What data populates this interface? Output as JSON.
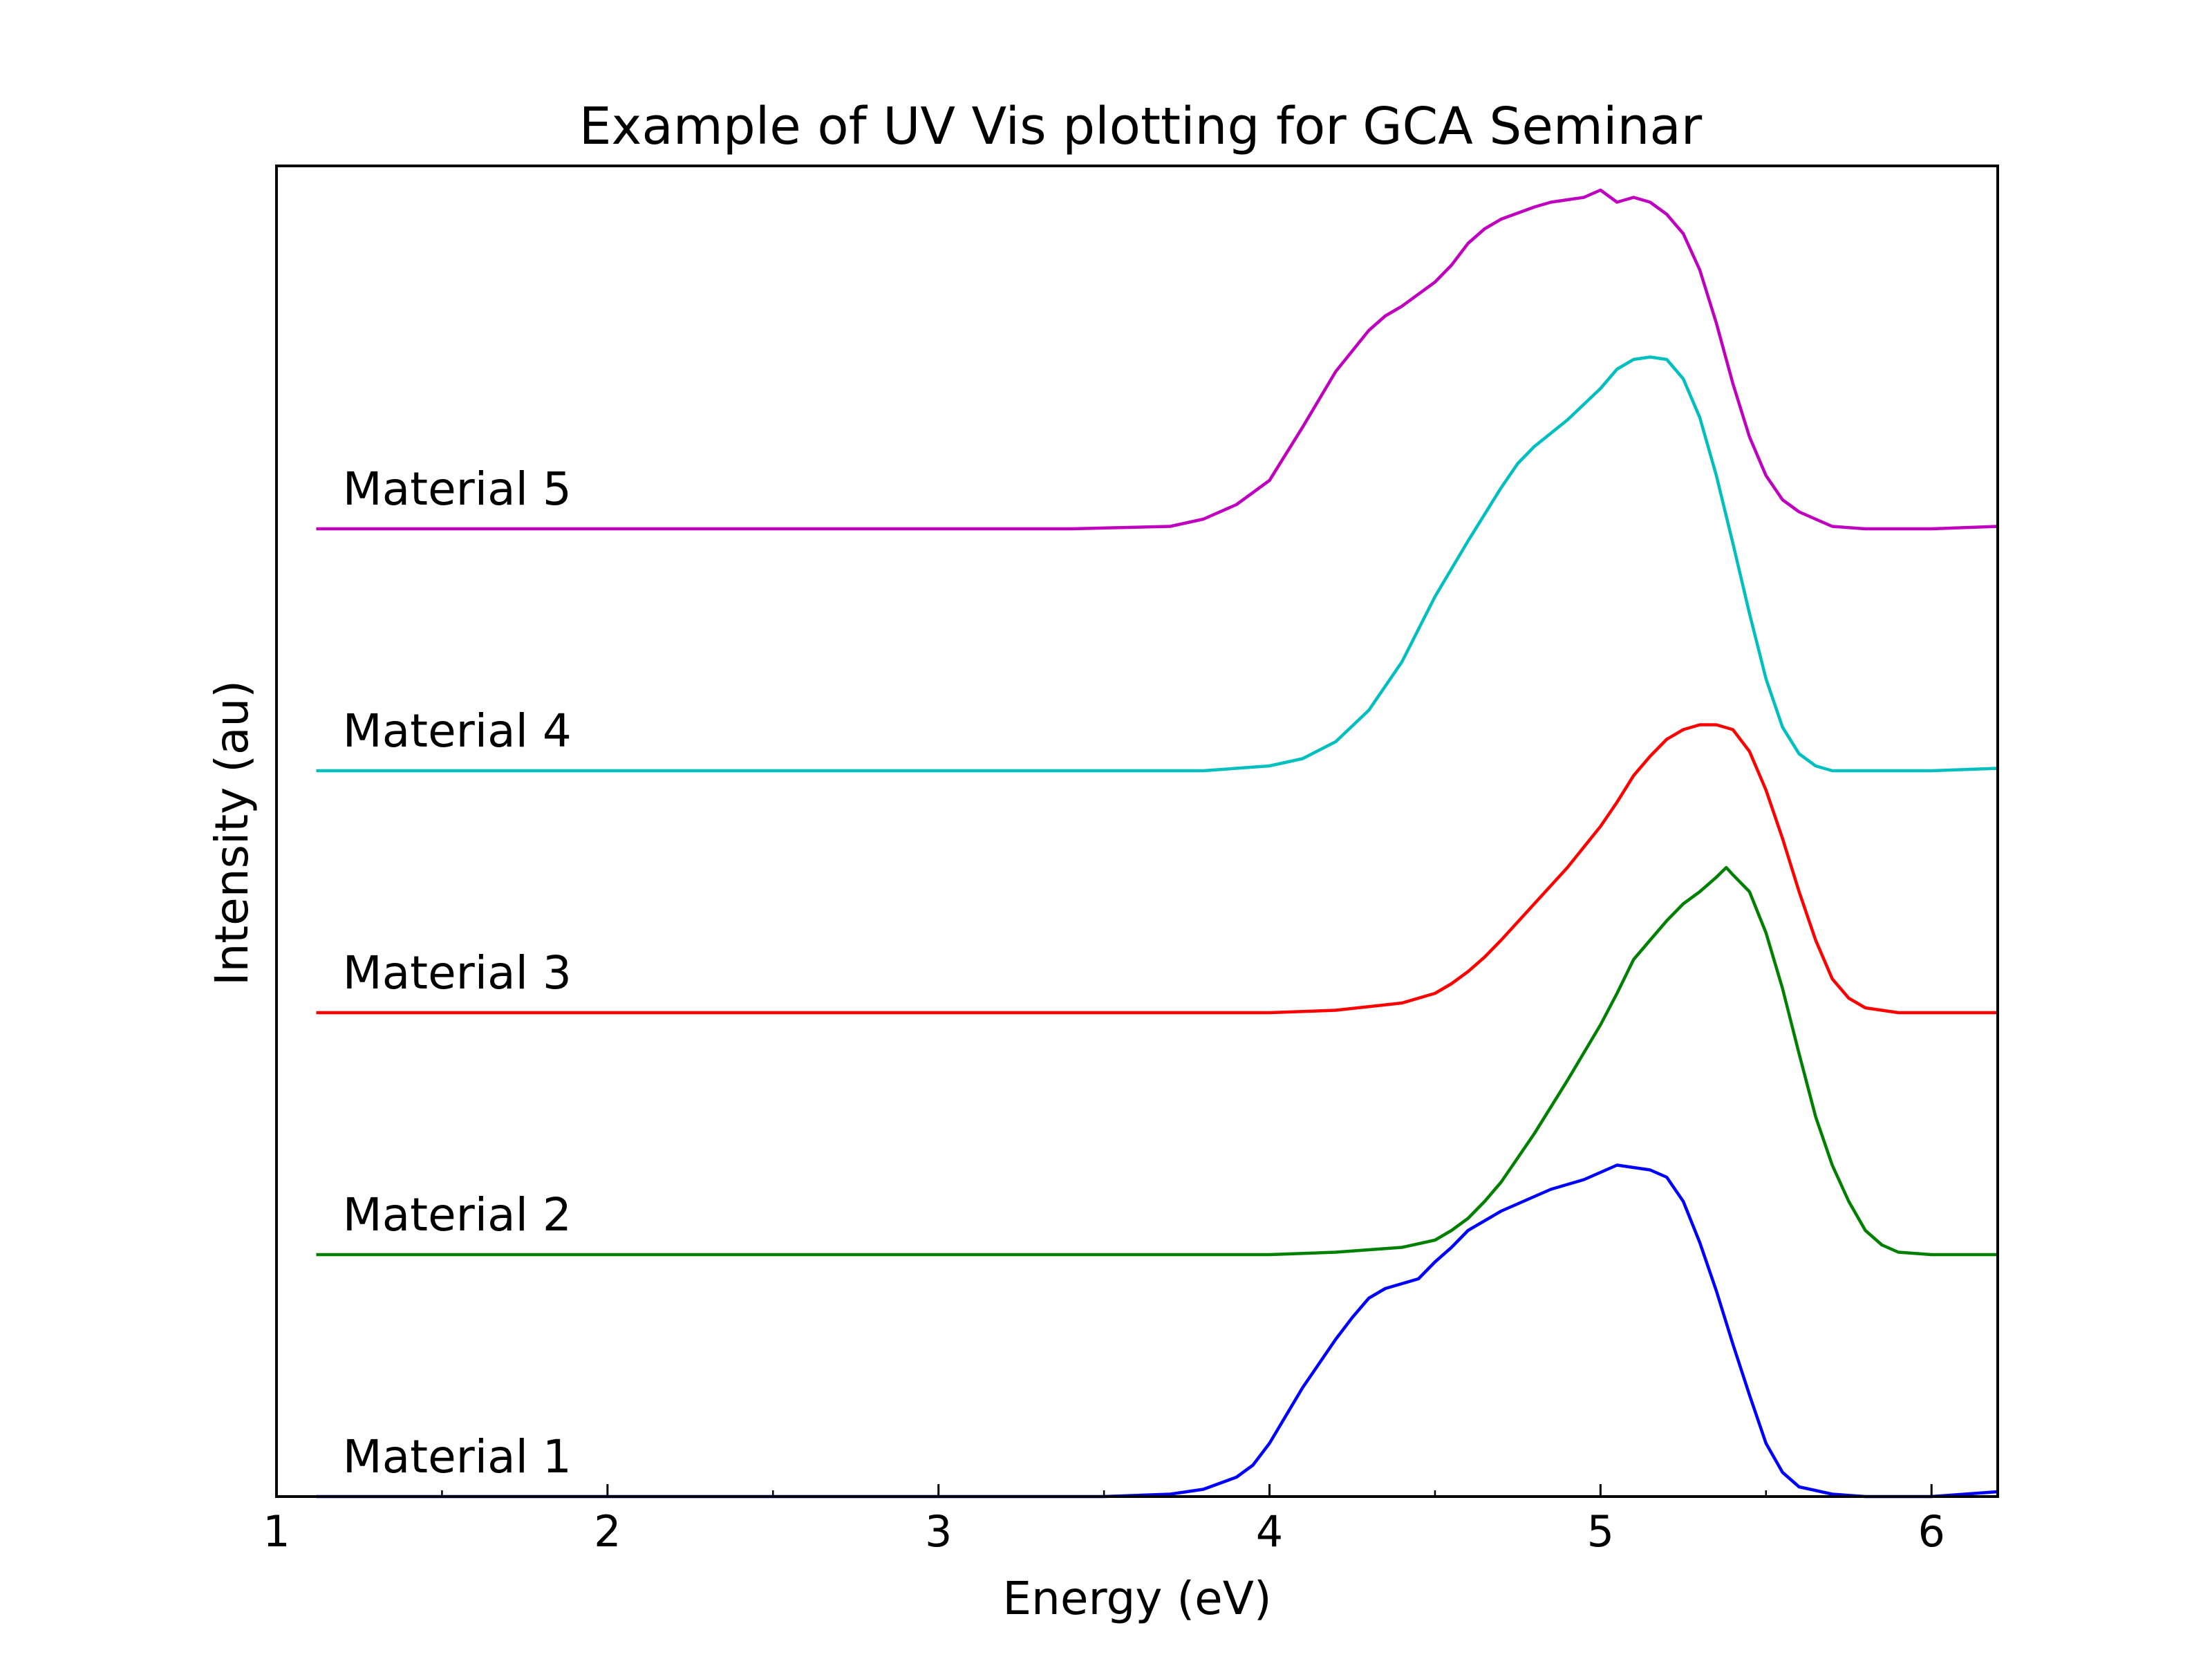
{
  "chart_data": {
    "type": "line",
    "title": "Example of UV Vis plotting for GCA Seminar",
    "xlabel": "Energy (eV)",
    "ylabel": "Intensity (au)",
    "xlim": [
      1,
      6.2
    ],
    "ylim": [
      0,
      5.5
    ],
    "grid": false,
    "legend": "none",
    "x_ticks": [
      1,
      2,
      3,
      4,
      5,
      6
    ],
    "x_tick_labels": [
      "1",
      "2",
      "3",
      "4",
      "5",
      "6"
    ],
    "x_minor_ticks": [
      1.5,
      2.5,
      3.5,
      4.5,
      5.5
    ],
    "series": [
      {
        "name": "Material 1",
        "color": "#0000ff",
        "offset": 0,
        "x": [
          1.12,
          3.3,
          3.5,
          3.7,
          3.8,
          3.9,
          3.95,
          4.0,
          4.1,
          4.2,
          4.25,
          4.3,
          4.35,
          4.4,
          4.45,
          4.5,
          4.55,
          4.6,
          4.7,
          4.8,
          4.85,
          4.9,
          4.95,
          5.0,
          5.05,
          5.1,
          5.15,
          5.2,
          5.25,
          5.3,
          5.35,
          5.4,
          5.45,
          5.5,
          5.55,
          5.6,
          5.7,
          5.8,
          5.9,
          6.0,
          6.2
        ],
        "y": [
          0.0,
          0.0,
          0.0,
          0.01,
          0.03,
          0.08,
          0.13,
          0.22,
          0.45,
          0.65,
          0.74,
          0.82,
          0.86,
          0.88,
          0.9,
          0.97,
          1.03,
          1.1,
          1.18,
          1.24,
          1.27,
          1.29,
          1.31,
          1.34,
          1.37,
          1.36,
          1.35,
          1.32,
          1.22,
          1.05,
          0.85,
          0.63,
          0.42,
          0.22,
          0.1,
          0.04,
          0.01,
          0.0,
          0.0,
          0.0,
          0.02
        ]
      },
      {
        "name": "Material 2",
        "color": "#008000",
        "offset": 1,
        "x": [
          1.12,
          3.5,
          4.0,
          4.2,
          4.4,
          4.5,
          4.55,
          4.6,
          4.65,
          4.7,
          4.8,
          4.9,
          5.0,
          5.05,
          5.1,
          5.15,
          5.2,
          5.25,
          5.3,
          5.35,
          5.38,
          5.4,
          5.45,
          5.5,
          5.55,
          5.6,
          5.65,
          5.7,
          5.75,
          5.8,
          5.85,
          5.9,
          6.0,
          6.2
        ],
        "y": [
          0.0,
          0.0,
          0.0,
          0.01,
          0.03,
          0.06,
          0.1,
          0.15,
          0.22,
          0.3,
          0.5,
          0.72,
          0.95,
          1.08,
          1.22,
          1.3,
          1.38,
          1.45,
          1.5,
          1.56,
          1.6,
          1.57,
          1.5,
          1.33,
          1.1,
          0.83,
          0.57,
          0.37,
          0.22,
          0.1,
          0.04,
          0.01,
          0.0,
          0.0
        ]
      },
      {
        "name": "Material 3",
        "color": "#ff0000",
        "offset": 2,
        "x": [
          1.12,
          3.5,
          4.0,
          4.2,
          4.4,
          4.5,
          4.55,
          4.6,
          4.65,
          4.7,
          4.8,
          4.9,
          5.0,
          5.05,
          5.1,
          5.15,
          5.2,
          5.25,
          5.3,
          5.35,
          5.4,
          5.45,
          5.5,
          5.55,
          5.6,
          5.65,
          5.7,
          5.75,
          5.8,
          5.9,
          6.0,
          6.2
        ],
        "y": [
          0.0,
          0.0,
          0.0,
          0.01,
          0.04,
          0.08,
          0.12,
          0.17,
          0.23,
          0.3,
          0.45,
          0.6,
          0.77,
          0.87,
          0.98,
          1.06,
          1.13,
          1.17,
          1.19,
          1.19,
          1.17,
          1.08,
          0.92,
          0.72,
          0.5,
          0.3,
          0.14,
          0.06,
          0.02,
          0.0,
          0.0,
          0.0
        ]
      },
      {
        "name": "Material 4",
        "color": "#00bfbf",
        "offset": 3,
        "x": [
          1.12,
          3.4,
          3.8,
          4.0,
          4.1,
          4.2,
          4.3,
          4.4,
          4.5,
          4.6,
          4.7,
          4.75,
          4.8,
          4.9,
          5.0,
          5.05,
          5.1,
          5.15,
          5.2,
          5.25,
          5.3,
          5.35,
          5.4,
          5.45,
          5.5,
          5.55,
          5.6,
          5.65,
          5.7,
          5.8,
          6.0,
          6.2
        ],
        "y": [
          0.0,
          0.0,
          0.0,
          0.02,
          0.05,
          0.12,
          0.25,
          0.45,
          0.72,
          0.95,
          1.17,
          1.27,
          1.34,
          1.45,
          1.58,
          1.66,
          1.7,
          1.71,
          1.7,
          1.62,
          1.46,
          1.22,
          0.94,
          0.65,
          0.38,
          0.18,
          0.07,
          0.02,
          0.0,
          0.0,
          0.0,
          0.01
        ]
      },
      {
        "name": "Material 5",
        "color": "#bf00bf",
        "offset": 4,
        "x": [
          1.12,
          3.4,
          3.7,
          3.8,
          3.9,
          4.0,
          4.1,
          4.2,
          4.3,
          4.35,
          4.4,
          4.5,
          4.55,
          4.6,
          4.65,
          4.7,
          4.8,
          4.85,
          4.9,
          4.95,
          5.0,
          5.05,
          5.1,
          5.15,
          5.2,
          5.25,
          5.3,
          5.35,
          5.4,
          5.45,
          5.5,
          5.55,
          5.6,
          5.65,
          5.7,
          5.8,
          6.0,
          6.2
        ],
        "y": [
          0.0,
          0.0,
          0.01,
          0.04,
          0.1,
          0.2,
          0.42,
          0.65,
          0.82,
          0.88,
          0.92,
          1.02,
          1.09,
          1.18,
          1.24,
          1.28,
          1.33,
          1.35,
          1.36,
          1.37,
          1.4,
          1.35,
          1.37,
          1.35,
          1.3,
          1.22,
          1.07,
          0.85,
          0.6,
          0.38,
          0.22,
          0.12,
          0.07,
          0.04,
          0.01,
          0.0,
          0.0,
          0.01
        ]
      }
    ],
    "annotations": [
      {
        "text": "Material 1",
        "x": 1.2,
        "y": 0.1
      },
      {
        "text": "Material 2",
        "x": 1.2,
        "y": 1.1
      },
      {
        "text": "Material 3",
        "x": 1.2,
        "y": 2.1
      },
      {
        "text": "Material 4",
        "x": 1.2,
        "y": 3.1
      },
      {
        "text": "Material 5",
        "x": 1.2,
        "y": 4.1
      }
    ]
  }
}
